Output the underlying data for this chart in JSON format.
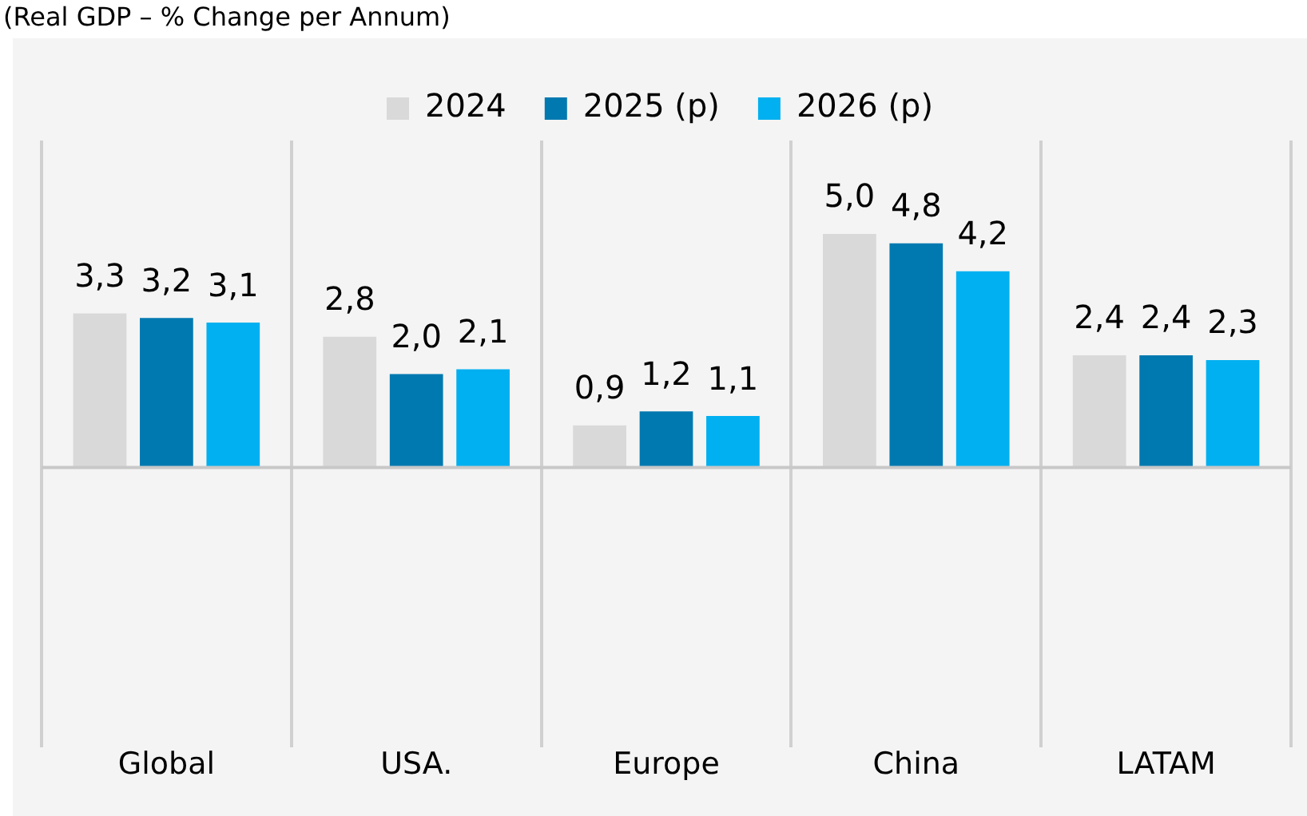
{
  "chart_data": {
    "type": "bar",
    "title": "(Real GDP – % Change per Annum)",
    "categories": [
      "Global",
      "USA.",
      "Europe",
      "China",
      "LATAM"
    ],
    "series": [
      {
        "name": "2024",
        "color": "#d9d9d9",
        "values": [
          3.3,
          2.8,
          0.9,
          5.0,
          2.4
        ],
        "value_labels": [
          "3,3",
          "2,8",
          "0,9",
          "5,0",
          "2,4"
        ]
      },
      {
        "name": "2025 (p)",
        "color": "#0079b0",
        "values": [
          3.2,
          2.0,
          1.2,
          4.8,
          2.4
        ],
        "value_labels": [
          "3,2",
          "2,0",
          "1,2",
          "4,8",
          "2,4"
        ]
      },
      {
        "name": "2026 (p)",
        "color": "#00b0f0",
        "values": [
          3.1,
          2.1,
          1.1,
          4.2,
          2.3
        ],
        "value_labels": [
          "3,1",
          "2,1",
          "1,1",
          "4,2",
          "2,3"
        ]
      }
    ],
    "ylim": [
      -6,
      7
    ],
    "tick_labels": "x",
    "grid": "x",
    "legend": "top"
  }
}
